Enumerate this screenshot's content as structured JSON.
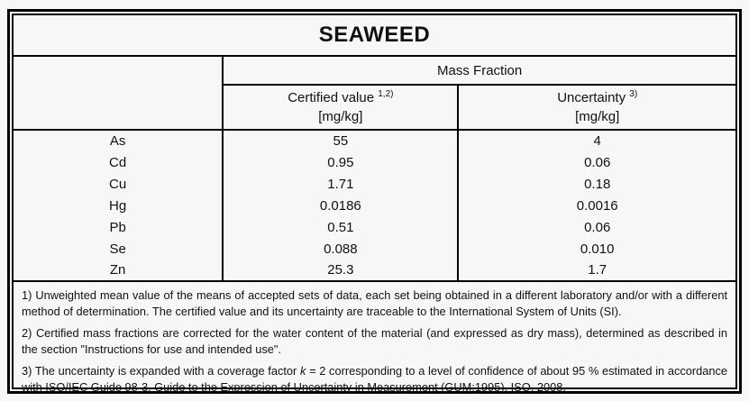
{
  "title": "SEAWEED",
  "colors": {
    "border": "#000000",
    "text": "#111111",
    "background": "#f7f7f7"
  },
  "table": {
    "group_header": "Mass Fraction",
    "columns": {
      "certified": {
        "label": "Certified value",
        "sup": "1,2)",
        "unit": "[mg/kg]"
      },
      "uncertainty": {
        "label": "Uncertainty",
        "sup": "3)",
        "unit": "[mg/kg]"
      }
    },
    "rows": [
      {
        "element": "As",
        "certified_value": "55",
        "uncertainty": "4"
      },
      {
        "element": "Cd",
        "certified_value": "0.95",
        "uncertainty": "0.06"
      },
      {
        "element": "Cu",
        "certified_value": "1.71",
        "uncertainty": "0.18"
      },
      {
        "element": "Hg",
        "certified_value": "0.0186",
        "uncertainty": "0.0016"
      },
      {
        "element": "Pb",
        "certified_value": "0.51",
        "uncertainty": "0.06"
      },
      {
        "element": "Se",
        "certified_value": "0.088",
        "uncertainty": "0.010"
      },
      {
        "element": "Zn",
        "certified_value": "25.3",
        "uncertainty": "1.7"
      }
    ]
  },
  "footnotes": {
    "note1": "1) Unweighted mean value of the means of accepted sets of data, each set being obtained in a different laboratory and/or with a different method of determination. The certified value and its uncertainty are traceable to the International System of Units (SI).",
    "note2": "2) Certified mass fractions are corrected for the water content of the material (and expressed as dry mass), determined as described in the section \"Instructions for use and intended use\".",
    "note3_pre": "3) The uncertainty is expanded with a coverage factor ",
    "note3_k": "k",
    "note3_post": " = 2 corresponding to a level of confidence of about 95 % estimated in accordance with ISO/IEC Guide 98-3, Guide to the Expression of Uncertainty in Measurement (GUM:1995), ISO, 2008."
  }
}
